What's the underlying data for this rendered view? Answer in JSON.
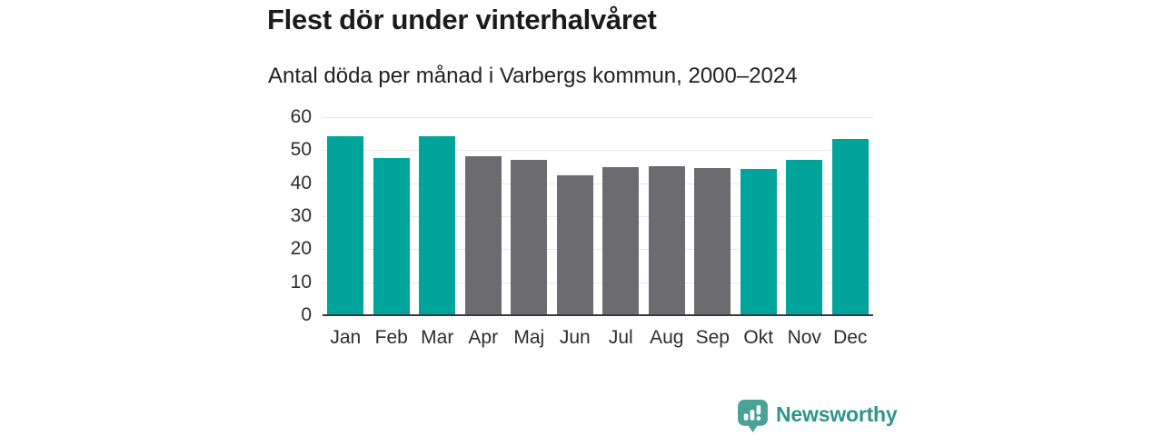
{
  "header": {
    "title": "Flest dör under vinterhalvåret",
    "subtitle": "Antal döda per månad i Varbergs kommun, 2000–2024"
  },
  "chart_data": {
    "type": "bar",
    "title": "Flest dör under vinterhalvåret",
    "subtitle": "Antal döda per månad i Varbergs kommun, 2000–2024",
    "categories": [
      "Jan",
      "Feb",
      "Mar",
      "Apr",
      "Maj",
      "Jun",
      "Jul",
      "Aug",
      "Sep",
      "Okt",
      "Nov",
      "Dec"
    ],
    "values": [
      54.1,
      47.6,
      54.3,
      48.2,
      47.0,
      42.3,
      45.0,
      45.1,
      44.5,
      44.3,
      47.2,
      53.4
    ],
    "bar_color_keys": [
      "highlight",
      "highlight",
      "highlight",
      "muted",
      "muted",
      "muted",
      "muted",
      "muted",
      "muted",
      "highlight",
      "highlight",
      "highlight"
    ],
    "bar_palette": {
      "highlight": "#00a49a",
      "muted": "#6c6c70"
    },
    "y_ticks": [
      0,
      10,
      20,
      30,
      40,
      50,
      60
    ],
    "ylim": [
      0,
      60
    ],
    "xlabel": "",
    "ylabel": "",
    "grid": true,
    "legend": "none",
    "gridline_color": "#e7e7e7",
    "axis_line_color": "#3b3b3b",
    "tick_label_color": "#2d2d2d"
  },
  "footer": {
    "brand": "Newsworthy",
    "brand_text_color": "#2f948c",
    "logo_color": "#4aa198"
  }
}
